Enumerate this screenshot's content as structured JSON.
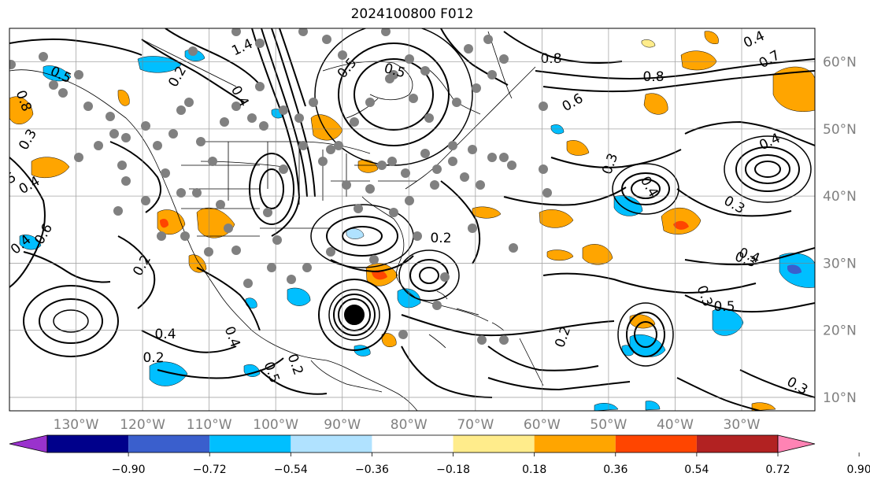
{
  "map": {
    "title": "2024100800 F012",
    "lon_labels": [
      "130°W",
      "120°W",
      "110°W",
      "100°W",
      "90°W",
      "80°W",
      "70°W",
      "60°W",
      "50°W",
      "40°W",
      "30°W"
    ],
    "lon_values": [
      -130,
      -120,
      -110,
      -100,
      -90,
      -80,
      -70,
      -60,
      -50,
      -40,
      -30
    ],
    "lat_labels": [
      "60°N",
      "50°N",
      "40°N",
      "30°N",
      "20°N",
      "10°N"
    ],
    "lat_values": [
      60,
      50,
      40,
      30,
      20,
      10
    ],
    "extent": {
      "lon": [
        -140,
        -19
      ],
      "lat": [
        8,
        65
      ]
    },
    "contour_labels": [
      "1.4",
      "0.5",
      "0.5",
      "0.2",
      "0.5",
      "0.8",
      "0.7",
      "0.4",
      "0.8",
      "0.6",
      "0.4",
      "0.8",
      "0.3",
      "0.4",
      "0.5",
      "0.6",
      "0.4",
      "0.3",
      "0.5",
      "0.4",
      "0.2",
      "0.3",
      "0.4",
      "0.2",
      "0.4",
      "0.2",
      "0.4",
      "0.5",
      "0.3",
      "0.2",
      "0.3",
      "0.4",
      "0.3",
      "0.2"
    ],
    "gray_color": "#808080",
    "contour_color": "#000000"
  },
  "colorbar": {
    "ticks": [
      "−0.90",
      "−0.72",
      "−0.54",
      "−0.36",
      "−0.18",
      "0.18",
      "0.36",
      "0.54",
      "0.72",
      "0.90"
    ],
    "under_color": "#9a32cd",
    "over_color": "#ff83b4",
    "colors": [
      "#9a32cd",
      "#00008b",
      "#3a5fcd",
      "#00bfff",
      "#b0e2ff",
      "#ffffff",
      "#ffec8b",
      "#ffa500",
      "#ff4500",
      "#b22222",
      "#ff83b4"
    ]
  }
}
